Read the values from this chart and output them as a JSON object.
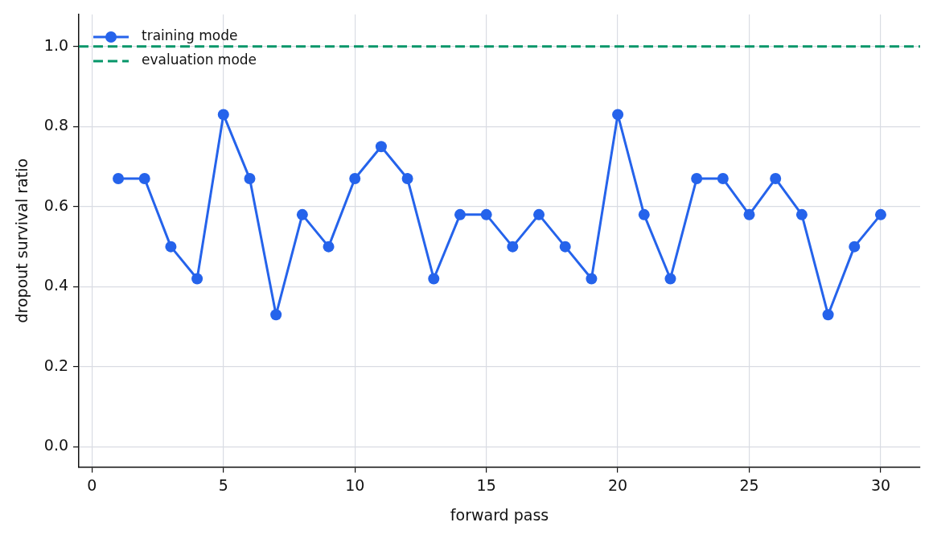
{
  "chart_data": {
    "type": "line",
    "xlabel": "forward pass",
    "ylabel": "dropout survival ratio",
    "xlim": [
      -0.5,
      31.5
    ],
    "xticks": [
      0,
      5,
      10,
      15,
      20,
      25,
      30
    ],
    "ylim": [
      -0.05,
      1.08
    ],
    "yticks": [
      {
        "value": 0,
        "label": "0.0"
      },
      {
        "value": 0.2,
        "label": "0.2"
      },
      {
        "value": 0.4,
        "label": "0.4"
      },
      {
        "value": 0.6,
        "label": "0.6"
      },
      {
        "value": 0.8,
        "label": "0.8"
      },
      {
        "value": 1,
        "label": "1.0"
      }
    ],
    "grid": true,
    "legend": "top left",
    "series": [
      {
        "name": "training mode",
        "color": "#2563eb",
        "marker": "circle",
        "line_style": "solid",
        "x": [
          1,
          2,
          3,
          4,
          5,
          6,
          7,
          8,
          9,
          10,
          11,
          12,
          13,
          14,
          15,
          16,
          17,
          18,
          19,
          20,
          21,
          22,
          23,
          24,
          25,
          26,
          27,
          28,
          29,
          30
        ],
        "values": [
          0.67,
          0.67,
          0.5,
          0.42,
          0.83,
          0.67,
          0.33,
          0.58,
          0.5,
          0.67,
          0.75,
          0.67,
          0.42,
          0.58,
          0.58,
          0.5,
          0.58,
          0.5,
          0.42,
          0.83,
          0.58,
          0.42,
          0.67,
          0.67,
          0.58,
          0.67,
          0.58,
          0.33,
          0.5,
          0.58
        ]
      },
      {
        "name": "evaluation mode",
        "color": "#059669",
        "marker": "none",
        "line_style": "dashed",
        "x": [
          -0.5,
          31.5
        ],
        "values": [
          1.0,
          1.0
        ]
      }
    ]
  }
}
